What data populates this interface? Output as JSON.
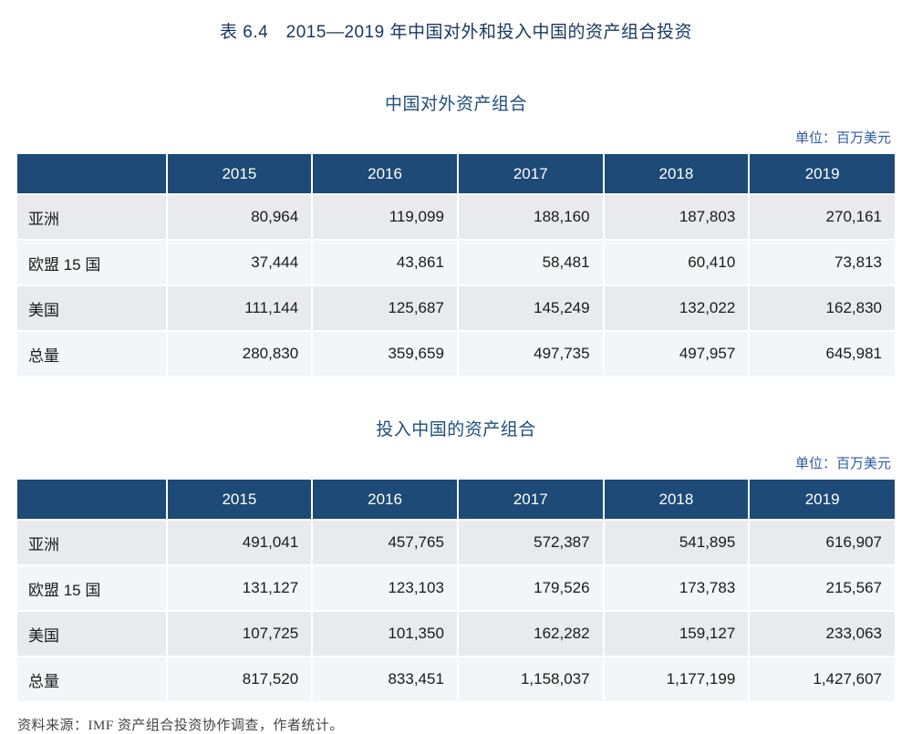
{
  "page_title": "表 6.4　2015—2019 年中国对外和投入中国的资产组合投资",
  "source_note": "资料来源：IMF 资产组合投资协作调查，作者统计。",
  "colors": {
    "header_bg": "#1d4a76",
    "title_blue": "#1f4e79",
    "unit_blue": "#2e5aa3",
    "row_odd": "#e8eaee",
    "row_even": "#f4f5f8"
  },
  "tables": [
    {
      "title": "中国对外资产组合",
      "unit": "单位：百万美元",
      "columns": [
        "2015",
        "2016",
        "2017",
        "2018",
        "2019"
      ],
      "rows": [
        {
          "label": "亚洲",
          "values": [
            "80,964",
            "119,099",
            "188,160",
            "187,803",
            "270,161"
          ]
        },
        {
          "label": "欧盟 15 国",
          "values": [
            "37,444",
            "43,861",
            "58,481",
            "60,410",
            "73,813"
          ]
        },
        {
          "label": "美国",
          "values": [
            "111,144",
            "125,687",
            "145,249",
            "132,022",
            "162,830"
          ]
        },
        {
          "label": "总量",
          "values": [
            "280,830",
            "359,659",
            "497,735",
            "497,957",
            "645,981"
          ]
        }
      ]
    },
    {
      "title": "投入中国的资产组合",
      "unit": "单位：百万美元",
      "columns": [
        "2015",
        "2016",
        "2017",
        "2018",
        "2019"
      ],
      "rows": [
        {
          "label": "亚洲",
          "values": [
            "491,041",
            "457,765",
            "572,387",
            "541,895",
            "616,907"
          ]
        },
        {
          "label": "欧盟 15 国",
          "values": [
            "131,127",
            "123,103",
            "179,526",
            "173,783",
            "215,567"
          ]
        },
        {
          "label": "美国",
          "values": [
            "107,725",
            "101,350",
            "162,282",
            "159,127",
            "233,063"
          ]
        },
        {
          "label": "总量",
          "values": [
            "817,520",
            "833,451",
            "1,158,037",
            "1,177,199",
            "1,427,607"
          ]
        }
      ]
    }
  ]
}
